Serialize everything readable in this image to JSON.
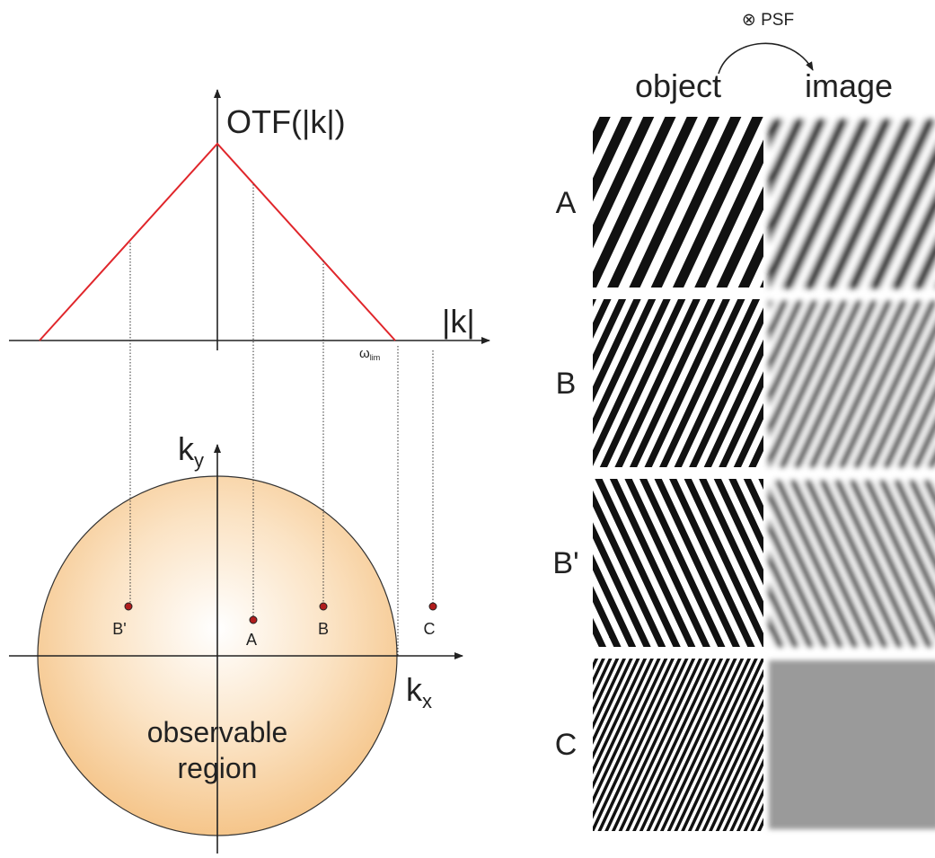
{
  "psf_label": "⊗ PSF",
  "columns": [
    "object",
    "image"
  ],
  "otf": {
    "axis_label": "OTF(|k|)",
    "k_label": "|k|",
    "omega": "ω",
    "omega_sub": "lim"
  },
  "kspace": {
    "ky": "k",
    "ky_sub": "y",
    "kx": "k",
    "kx_sub": "x",
    "region": [
      "observable",
      "region"
    ],
    "points": [
      "B'",
      "A",
      "B",
      "C"
    ]
  },
  "rows": [
    "A",
    "B",
    "B'",
    "C"
  ]
}
